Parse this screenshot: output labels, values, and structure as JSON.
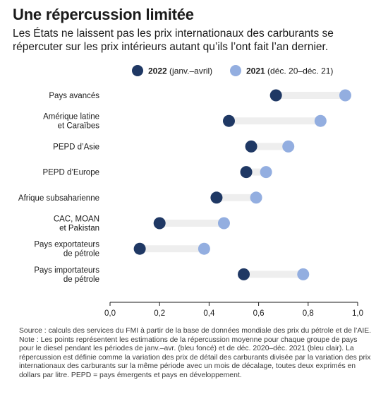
{
  "header": {
    "title": "Une répercussion limitée",
    "subtitle": "Les États ne laissent pas les prix internationaux des carburants se répercuter sur les prix intérieurs autant qu’ils l’ont fait l’an dernier."
  },
  "colors": {
    "dark": "#1f3864",
    "light": "#93aee0",
    "connector": "#eeeeee"
  },
  "chart_data": {
    "type": "dumbbell",
    "xlim": [
      0,
      1.0
    ],
    "xticks": [
      "0,0",
      "0,2",
      "0,4",
      "0,6",
      "0,8",
      "1,0"
    ],
    "legend": {
      "position": "top",
      "items": [
        {
          "bold": "2022",
          "rest": " (janv.–avril)"
        },
        {
          "bold": "2021",
          "rest": " (déc. 20–déc. 21)"
        }
      ]
    },
    "categories": [
      [
        "Pays avancés"
      ],
      [
        "Amérique latine",
        "et Caraïbes"
      ],
      [
        "PEPD d’Asie"
      ],
      [
        "PEPD d’Europe"
      ],
      [
        "Afrique subsaharienne"
      ],
      [
        "CAC, MOAN",
        "et Pakistan"
      ],
      [
        "Pays exportateurs",
        "de pétrole"
      ],
      [
        "Pays importateurs",
        "de pétrole"
      ]
    ],
    "series": [
      {
        "name": "2022 (janv.–avril)",
        "values": [
          0.67,
          0.48,
          0.57,
          0.55,
          0.43,
          0.2,
          0.12,
          0.54
        ]
      },
      {
        "name": "2021 (déc. 20–déc. 21)",
        "values": [
          0.95,
          0.85,
          0.72,
          0.63,
          0.59,
          0.46,
          0.38,
          0.78
        ]
      }
    ]
  },
  "notes": {
    "source": "Source : calculs des services du FMI à partir de la base de données mondiale des prix du pétrole et de l’AIE.",
    "note": "Note : Les points représentent les estimations de la répercussion moyenne pour chaque groupe de pays pour le diesel pendant les périodes de janv.–avr. (bleu foncé) et de déc. 2020–déc. 2021 (bleu clair). La répercussion est définie comme la variation des prix de détail des carburants divisée par la variation des prix internationaux des carburants sur la même période avec un mois de décalage, toutes deux exprimés en dollars par litre. PEPD = pays émergents et pays en développement."
  }
}
